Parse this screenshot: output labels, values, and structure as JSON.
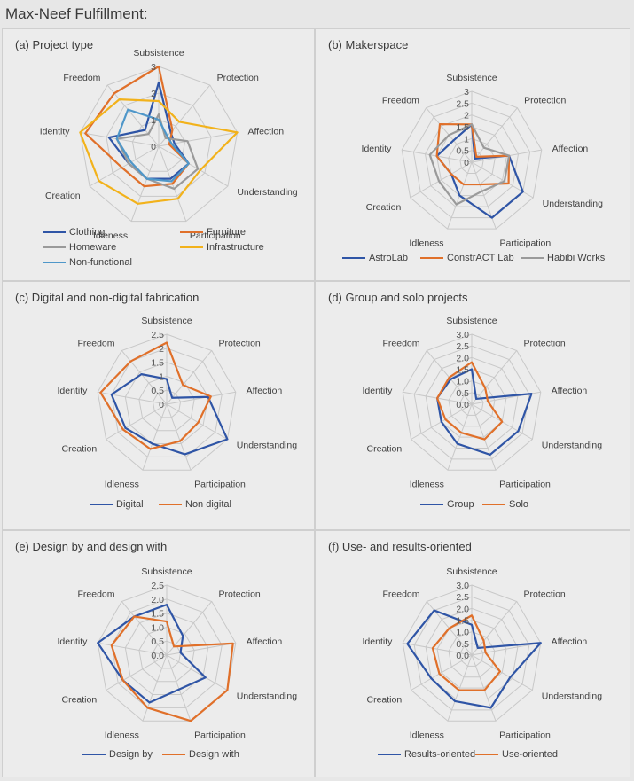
{
  "figure_title": "Max-Neef Fulfillment:",
  "chart_data": [
    {
      "type": "radar",
      "title": "(a) Project type",
      "axes": [
        "Subsistence",
        "Protection",
        "Affection",
        "Understanding",
        "Participation",
        "Idleness",
        "Creation",
        "Identity",
        "Freedom"
      ],
      "ticks": [
        "0",
        "1",
        "2",
        "3"
      ],
      "rmax": 3,
      "series": [
        {
          "name": "Clothing",
          "color": "#2f55a6",
          "values": [
            2.4,
            0.7,
            0.6,
            1.3,
            1.3,
            1.3,
            1.3,
            1.9,
            0.8
          ]
        },
        {
          "name": "Furniture",
          "color": "#e0702a",
          "values": [
            3.0,
            0.8,
            0.4,
            1.3,
            1.5,
            1.6,
            1.6,
            2.8,
            2.6
          ]
        },
        {
          "name": "Homeware",
          "color": "#9a9a9a",
          "values": [
            1.2,
            0.4,
            1.1,
            1.7,
            1.7,
            1.3,
            1.3,
            1.6,
            0.6
          ]
        },
        {
          "name": "Infrastructure",
          "color": "#f2b21b",
          "values": [
            1.7,
            1.2,
            3.0,
            1.8,
            2.1,
            2.3,
            2.6,
            3.0,
            2.3
          ]
        },
        {
          "name": "Non-functional",
          "color": "#4f97c9",
          "values": [
            1.0,
            0.5,
            0.5,
            1.3,
            1.4,
            1.3,
            1.2,
            1.6,
            1.8
          ]
        }
      ]
    },
    {
      "type": "radar",
      "title": "(b) Makerspace",
      "axes": [
        "Subsistence",
        "Protection",
        "Affection",
        "Understanding",
        "Participation",
        "Idleness",
        "Creation",
        "Identity",
        "Freedom"
      ],
      "ticks": [
        "0",
        "0.5",
        "1",
        "1.5",
        "2",
        "2.5",
        "3"
      ],
      "rmax": 3,
      "series": [
        {
          "name": "AstroLab",
          "color": "#2f55a6",
          "values": [
            1.6,
            0.2,
            1.6,
            2.5,
            2.5,
            1.5,
            1.0,
            1.5,
            1.2
          ]
        },
        {
          "name": "ConstrACT Lab",
          "color": "#e0702a",
          "values": [
            1.6,
            0.3,
            1.6,
            1.8,
            1.0,
            1.0,
            1.0,
            1.5,
            2.1
          ]
        },
        {
          "name": "Habibi Works",
          "color": "#9a9a9a",
          "values": [
            1.6,
            0.8,
            1.6,
            1.6,
            1.3,
            1.9,
            1.6,
            1.8,
            1.5
          ]
        }
      ]
    },
    {
      "type": "radar",
      "title": "(c) Digital and non-digital fabrication",
      "axes": [
        "Subsistence",
        "Protection",
        "Affection",
        "Understanding",
        "Participation",
        "Idleness",
        "Creation",
        "Identity",
        "Freedom"
      ],
      "ticks": [
        "0",
        "0.5",
        "1",
        "1.5",
        "2",
        "2.5"
      ],
      "rmax": 2.5,
      "series": [
        {
          "name": "Digital",
          "color": "#2f55a6",
          "values": [
            0.9,
            0.3,
            1.5,
            2.5,
            1.9,
            1.5,
            1.7,
            2.0,
            1.4
          ]
        },
        {
          "name": "Non digital",
          "color": "#e0702a",
          "values": [
            2.2,
            0.9,
            1.6,
            1.3,
            1.4,
            1.7,
            1.8,
            2.4,
            2.0
          ]
        }
      ]
    },
    {
      "type": "radar",
      "title": "(d) Group and solo projects",
      "axes": [
        "Subsistence",
        "Protection",
        "Affection",
        "Understanding",
        "Participation",
        "Idleness",
        "Creation",
        "Identity",
        "Freedom"
      ],
      "ticks": [
        "0.0",
        "0.5",
        "1.0",
        "1.5",
        "2.0",
        "2.5",
        "3.0"
      ],
      "rmax": 3,
      "series": [
        {
          "name": "Group",
          "color": "#2f55a6",
          "values": [
            1.5,
            0.3,
            2.6,
            2.3,
            2.3,
            1.8,
            1.5,
            1.5,
            1.4
          ]
        },
        {
          "name": "Solo",
          "color": "#e0702a",
          "values": [
            1.8,
            0.9,
            0.7,
            1.5,
            1.6,
            1.3,
            1.3,
            1.5,
            1.5
          ]
        }
      ]
    },
    {
      "type": "radar",
      "title": "(e) Design by and design with",
      "axes": [
        "Subsistence",
        "Protection",
        "Affection",
        "Understanding",
        "Participation",
        "Idleness",
        "Creation",
        "Identity",
        "Freedom"
      ],
      "ticks": [
        "0.0",
        "0.5",
        "1.0",
        "1.5",
        "2.0",
        "2.5"
      ],
      "rmax": 2.5,
      "series": [
        {
          "name": "Design by",
          "color": "#2f55a6",
          "values": [
            1.8,
            0.9,
            0.5,
            1.6,
            1.3,
            1.8,
            1.8,
            2.5,
            1.8
          ]
        },
        {
          "name": "Design with",
          "color": "#e0702a",
          "values": [
            1.2,
            0.4,
            2.4,
            2.5,
            2.5,
            2.0,
            1.8,
            2.0,
            1.8
          ]
        }
      ]
    },
    {
      "type": "radar",
      "title": "(f) Use- and results-oriented",
      "axes": [
        "Subsistence",
        "Protection",
        "Affection",
        "Understanding",
        "Participation",
        "Idleness",
        "Creation",
        "Identity",
        "Freedom"
      ],
      "ticks": [
        "0.0",
        "0.5",
        "1.0",
        "1.5",
        "2.0",
        "2.5",
        "3.0"
      ],
      "rmax": 3,
      "series": [
        {
          "name": "Results-oriented",
          "color": "#2f55a6",
          "values": [
            1.3,
            0.4,
            3.0,
            1.9,
            2.4,
            2.1,
            2.0,
            2.8,
            2.5
          ]
        },
        {
          "name": "Use-oriented",
          "color": "#e0702a",
          "values": [
            1.7,
            0.8,
            0.6,
            1.4,
            1.6,
            1.6,
            1.6,
            1.7,
            1.5
          ]
        }
      ]
    }
  ]
}
